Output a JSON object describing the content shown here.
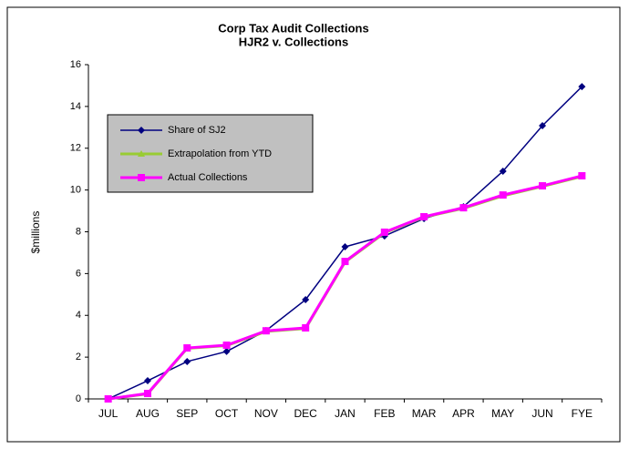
{
  "chart_data": {
    "type": "line",
    "title": "Corp Tax Audit Collections",
    "subtitle": "HJR2 v. Collections",
    "y_label": "$millions",
    "categories": [
      "JUL",
      "AUG",
      "SEP",
      "OCT",
      "NOV",
      "DEC",
      "JAN",
      "FEB",
      "MAR",
      "APR",
      "MAY",
      "JUN",
      "FYE"
    ],
    "series": [
      {
        "name": "Share of SJ2",
        "color": "#000080",
        "marker": "diamond",
        "values": [
          0,
          0.87,
          1.79,
          2.27,
          3.27,
          4.75,
          7.28,
          7.8,
          8.63,
          9.2,
          10.9,
          13.08,
          14.95
        ]
      },
      {
        "name": "Extrapolation from YTD",
        "color": "#99cc33",
        "marker": "triangle",
        "values": [
          0,
          0.24,
          2.42,
          2.55,
          3.23,
          3.37,
          6.55,
          7.95,
          8.7,
          9.12,
          9.72,
          10.17,
          10.65
        ]
      },
      {
        "name": "Actual Collections",
        "color": "#ff00ff",
        "marker": "square",
        "values": [
          0,
          0.26,
          2.44,
          2.57,
          3.26,
          3.4,
          6.58,
          7.98,
          8.72,
          9.15,
          9.76,
          10.2,
          10.68
        ]
      }
    ],
    "ylim": [
      0,
      16
    ],
    "yticks": [
      0,
      2,
      4,
      6,
      8,
      10,
      12,
      14,
      16
    ],
    "grid": false,
    "legend": "upper left"
  }
}
